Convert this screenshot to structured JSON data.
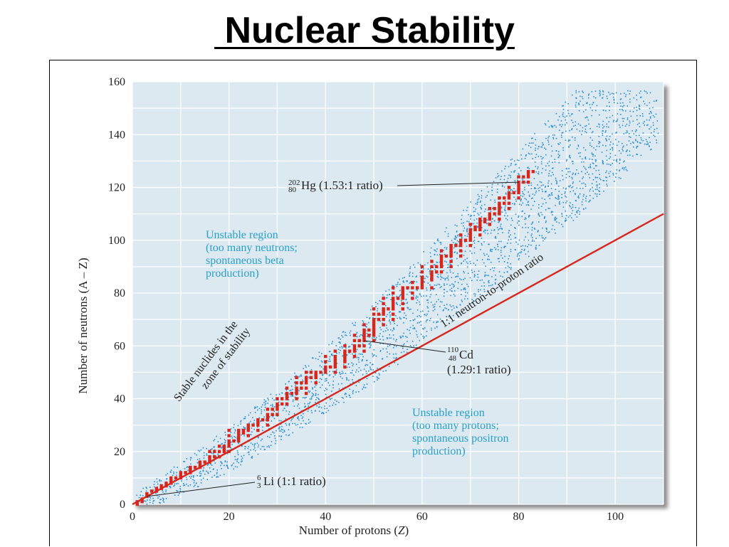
{
  "slide": {
    "title": " Nuclear Stability"
  },
  "colors": {
    "plot_bg": "#dce9f1",
    "grid": "#ffffff",
    "stable": "#d9261c",
    "unstable_dots": "#2b8fd0",
    "one_to_one_line": "#d9261c",
    "region_text": "#2aa0c8",
    "text": "#222222"
  },
  "chart_data": {
    "type": "scatter",
    "xlabel_prefix": "Number of protons (",
    "xlabel_var": "Z",
    "xlabel_suffix": ")",
    "ylabel": "Number of neutrons (A – Z)",
    "xlim": [
      0,
      110
    ],
    "ylim": [
      0,
      160
    ],
    "x_ticks": [
      0,
      20,
      40,
      60,
      80,
      100
    ],
    "y_ticks": [
      0,
      20,
      40,
      60,
      80,
      100,
      120,
      140,
      160
    ],
    "grid": true,
    "series": [
      {
        "name": "Stable nuclides in the zone of stability",
        "color": "#d9261c",
        "points": [
          [
            1,
            0
          ],
          [
            1,
            1
          ],
          [
            2,
            1
          ],
          [
            2,
            2
          ],
          [
            3,
            3
          ],
          [
            3,
            4
          ],
          [
            4,
            5
          ],
          [
            5,
            5
          ],
          [
            5,
            6
          ],
          [
            6,
            6
          ],
          [
            6,
            7
          ],
          [
            7,
            7
          ],
          [
            7,
            8
          ],
          [
            8,
            8
          ],
          [
            8,
            9
          ],
          [
            8,
            10
          ],
          [
            9,
            10
          ],
          [
            10,
            10
          ],
          [
            10,
            11
          ],
          [
            10,
            12
          ],
          [
            11,
            12
          ],
          [
            12,
            12
          ],
          [
            12,
            13
          ],
          [
            12,
            14
          ],
          [
            13,
            14
          ],
          [
            14,
            14
          ],
          [
            14,
            15
          ],
          [
            14,
            16
          ],
          [
            15,
            16
          ],
          [
            16,
            16
          ],
          [
            16,
            17
          ],
          [
            16,
            18
          ],
          [
            16,
            20
          ],
          [
            17,
            18
          ],
          [
            17,
            20
          ],
          [
            18,
            18
          ],
          [
            18,
            20
          ],
          [
            18,
            22
          ],
          [
            19,
            20
          ],
          [
            19,
            21
          ],
          [
            19,
            22
          ],
          [
            20,
            20
          ],
          [
            20,
            22
          ],
          [
            20,
            23
          ],
          [
            20,
            24
          ],
          [
            20,
            26
          ],
          [
            20,
            28
          ],
          [
            21,
            24
          ],
          [
            22,
            24
          ],
          [
            22,
            25
          ],
          [
            22,
            26
          ],
          [
            22,
            27
          ],
          [
            22,
            28
          ],
          [
            23,
            27
          ],
          [
            23,
            28
          ],
          [
            24,
            26
          ],
          [
            24,
            28
          ],
          [
            24,
            29
          ],
          [
            24,
            30
          ],
          [
            25,
            30
          ],
          [
            26,
            28
          ],
          [
            26,
            30
          ],
          [
            26,
            31
          ],
          [
            26,
            32
          ],
          [
            27,
            32
          ],
          [
            28,
            30
          ],
          [
            28,
            32
          ],
          [
            28,
            33
          ],
          [
            28,
            34
          ],
          [
            28,
            36
          ],
          [
            29,
            34
          ],
          [
            29,
            36
          ],
          [
            30,
            34
          ],
          [
            30,
            36
          ],
          [
            30,
            37
          ],
          [
            30,
            38
          ],
          [
            30,
            40
          ],
          [
            31,
            38
          ],
          [
            31,
            40
          ],
          [
            32,
            38
          ],
          [
            32,
            40
          ],
          [
            32,
            41
          ],
          [
            32,
            42
          ],
          [
            32,
            44
          ],
          [
            33,
            42
          ],
          [
            34,
            40
          ],
          [
            34,
            42
          ],
          [
            34,
            43
          ],
          [
            34,
            44
          ],
          [
            34,
            46
          ],
          [
            34,
            48
          ],
          [
            35,
            44
          ],
          [
            35,
            46
          ],
          [
            36,
            42
          ],
          [
            36,
            44
          ],
          [
            36,
            46
          ],
          [
            36,
            47
          ],
          [
            36,
            48
          ],
          [
            36,
            50
          ],
          [
            37,
            48
          ],
          [
            37,
            50
          ],
          [
            38,
            46
          ],
          [
            38,
            48
          ],
          [
            38,
            49
          ],
          [
            38,
            50
          ],
          [
            39,
            50
          ],
          [
            40,
            50
          ],
          [
            40,
            51
          ],
          [
            40,
            52
          ],
          [
            40,
            54
          ],
          [
            40,
            56
          ],
          [
            41,
            52
          ],
          [
            42,
            50
          ],
          [
            42,
            52
          ],
          [
            42,
            53
          ],
          [
            42,
            54
          ],
          [
            42,
            55
          ],
          [
            42,
            56
          ],
          [
            42,
            58
          ],
          [
            44,
            52
          ],
          [
            44,
            54
          ],
          [
            44,
            55
          ],
          [
            44,
            56
          ],
          [
            44,
            57
          ],
          [
            44,
            58
          ],
          [
            44,
            60
          ],
          [
            45,
            58
          ],
          [
            46,
            56
          ],
          [
            46,
            58
          ],
          [
            46,
            59
          ],
          [
            46,
            60
          ],
          [
            46,
            62
          ],
          [
            46,
            64
          ],
          [
            47,
            60
          ],
          [
            47,
            62
          ],
          [
            48,
            58
          ],
          [
            48,
            60
          ],
          [
            48,
            62
          ],
          [
            48,
            63
          ],
          [
            48,
            64
          ],
          [
            48,
            65
          ],
          [
            48,
            66
          ],
          [
            48,
            68
          ],
          [
            49,
            64
          ],
          [
            49,
            66
          ],
          [
            50,
            62
          ],
          [
            50,
            64
          ],
          [
            50,
            65
          ],
          [
            50,
            66
          ],
          [
            50,
            67
          ],
          [
            50,
            68
          ],
          [
            50,
            69
          ],
          [
            50,
            70
          ],
          [
            50,
            72
          ],
          [
            50,
            74
          ],
          [
            51,
            70
          ],
          [
            51,
            72
          ],
          [
            52,
            68
          ],
          [
            52,
            70
          ],
          [
            52,
            72
          ],
          [
            52,
            73
          ],
          [
            52,
            74
          ],
          [
            52,
            76
          ],
          [
            52,
            78
          ],
          [
            53,
            74
          ],
          [
            54,
            70
          ],
          [
            54,
            72
          ],
          [
            54,
            74
          ],
          [
            54,
            75
          ],
          [
            54,
            76
          ],
          [
            54,
            77
          ],
          [
            54,
            78
          ],
          [
            54,
            80
          ],
          [
            54,
            82
          ],
          [
            55,
            78
          ],
          [
            56,
            74
          ],
          [
            56,
            76
          ],
          [
            56,
            78
          ],
          [
            56,
            79
          ],
          [
            56,
            80
          ],
          [
            56,
            81
          ],
          [
            56,
            82
          ],
          [
            57,
            82
          ],
          [
            58,
            78
          ],
          [
            58,
            80
          ],
          [
            58,
            82
          ],
          [
            58,
            84
          ],
          [
            59,
            82
          ],
          [
            60,
            82
          ],
          [
            60,
            83
          ],
          [
            60,
            84
          ],
          [
            60,
            85
          ],
          [
            60,
            86
          ],
          [
            60,
            88
          ],
          [
            60,
            90
          ],
          [
            62,
            82
          ],
          [
            62,
            85
          ],
          [
            62,
            86
          ],
          [
            62,
            87
          ],
          [
            62,
            88
          ],
          [
            62,
            90
          ],
          [
            62,
            92
          ],
          [
            63,
            88
          ],
          [
            63,
            90
          ],
          [
            64,
            88
          ],
          [
            64,
            90
          ],
          [
            64,
            91
          ],
          [
            64,
            92
          ],
          [
            64,
            93
          ],
          [
            64,
            94
          ],
          [
            64,
            96
          ],
          [
            65,
            94
          ],
          [
            66,
            90
          ],
          [
            66,
            92
          ],
          [
            66,
            94
          ],
          [
            66,
            95
          ],
          [
            66,
            96
          ],
          [
            66,
            97
          ],
          [
            66,
            98
          ],
          [
            67,
            98
          ],
          [
            68,
            94
          ],
          [
            68,
            96
          ],
          [
            68,
            98
          ],
          [
            68,
            99
          ],
          [
            68,
            100
          ],
          [
            68,
            102
          ],
          [
            69,
            100
          ],
          [
            70,
            98
          ],
          [
            70,
            100
          ],
          [
            70,
            101
          ],
          [
            70,
            102
          ],
          [
            70,
            103
          ],
          [
            70,
            104
          ],
          [
            70,
            106
          ],
          [
            71,
            104
          ],
          [
            71,
            105
          ],
          [
            72,
            102
          ],
          [
            72,
            104
          ],
          [
            72,
            105
          ],
          [
            72,
            106
          ],
          [
            72,
            107
          ],
          [
            72,
            108
          ],
          [
            73,
            107
          ],
          [
            73,
            108
          ],
          [
            74,
            106
          ],
          [
            74,
            108
          ],
          [
            74,
            109
          ],
          [
            74,
            110
          ],
          [
            74,
            112
          ],
          [
            75,
            110
          ],
          [
            75,
            112
          ],
          [
            76,
            108
          ],
          [
            76,
            110
          ],
          [
            76,
            111
          ],
          [
            76,
            112
          ],
          [
            76,
            113
          ],
          [
            76,
            114
          ],
          [
            76,
            116
          ],
          [
            77,
            114
          ],
          [
            77,
            116
          ],
          [
            78,
            112
          ],
          [
            78,
            114
          ],
          [
            78,
            116
          ],
          [
            78,
            117
          ],
          [
            78,
            118
          ],
          [
            78,
            120
          ],
          [
            79,
            118
          ],
          [
            80,
            116
          ],
          [
            80,
            118
          ],
          [
            80,
            119
          ],
          [
            80,
            120
          ],
          [
            80,
            121
          ],
          [
            80,
            122
          ],
          [
            80,
            124
          ],
          [
            81,
            122
          ],
          [
            81,
            124
          ],
          [
            82,
            122
          ],
          [
            82,
            124
          ],
          [
            82,
            125
          ],
          [
            82,
            126
          ],
          [
            83,
            126
          ]
        ]
      }
    ],
    "one_to_one_line": {
      "from": [
        0,
        0
      ],
      "to": [
        110,
        110
      ],
      "label": "1:1 neutron-to-proton ratio"
    },
    "zone_band_label": [
      "Stable nuclides in the",
      "zone of stability"
    ],
    "annotations": [
      {
        "mass": "202",
        "atomic": "80",
        "symbol": "Hg",
        "ratio": " (1.53:1 ratio)",
        "point": [
          80,
          122
        ]
      },
      {
        "mass": "110",
        "atomic": "48",
        "symbol": "Cd",
        "ratio": "(1.29:1 ratio)",
        "point": [
          48,
          62
        ]
      },
      {
        "mass": "6",
        "atomic": "3",
        "symbol": "Li",
        "ratio": " (1:1 ratio)",
        "point": [
          3,
          3
        ]
      }
    ],
    "regions": [
      {
        "lines": [
          "Unstable region",
          "(too many neutrons;",
          "spontaneous beta",
          "production)"
        ]
      },
      {
        "lines": [
          "Unstable region",
          "(too many protons;",
          "spontaneous positron",
          "production)"
        ]
      }
    ]
  }
}
